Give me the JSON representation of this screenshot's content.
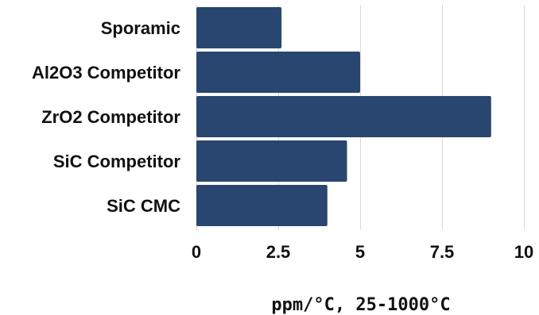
{
  "chart_data": {
    "type": "bar",
    "orientation": "horizontal",
    "categories": [
      "Sporamic",
      "Al2O3 Competitor",
      "ZrO2 Competitor",
      "SiC Competitor",
      "SiC CMC"
    ],
    "values": [
      2.6,
      5.0,
      9.0,
      4.6,
      4.0
    ],
    "xlabel": "ppm/°C, 25-1000°C",
    "ylabel": "",
    "title": "",
    "xlim": [
      0,
      10
    ],
    "xticks": [
      "0",
      "2.5",
      "5",
      "7.5",
      "10"
    ],
    "xtick_values": [
      0,
      2.5,
      5,
      7.5,
      10
    ],
    "grid": "vertical",
    "bar_color": "#28466f"
  }
}
